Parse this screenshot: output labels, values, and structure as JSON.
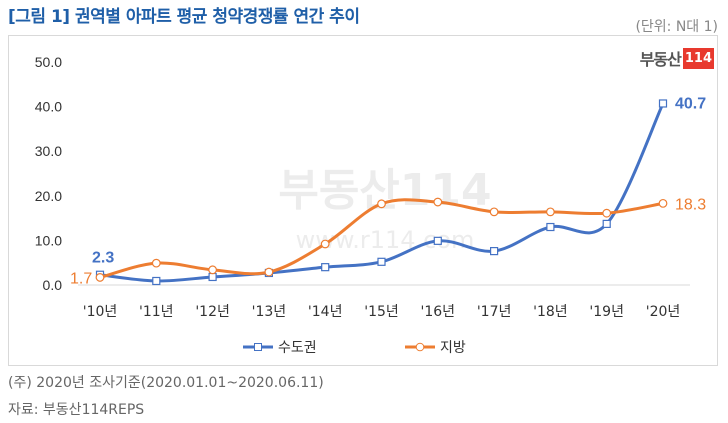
{
  "title": "[그림 1] 권역별 아파트 평균 청약경쟁률 연간 추이",
  "unit": "(단위: N대 1)",
  "logo": {
    "text": "부동산",
    "num": "114"
  },
  "watermark": {
    "text": "부동산114",
    "url": "www.r114.com"
  },
  "notes": [
    "(주) 2020년 조사기준(2020.01.01~2020.06.11)",
    "자료: 부동산114REPS"
  ],
  "chart_data": {
    "type": "line",
    "categories": [
      "'10년",
      "'11년",
      "'12년",
      "'13년",
      "'14년",
      "'15년",
      "'16년",
      "'17년",
      "'18년",
      "'19년",
      "'20년"
    ],
    "ylim": [
      0,
      50
    ],
    "yticks": [
      "0.0",
      "10.0",
      "20.0",
      "30.0",
      "40.0",
      "50.0"
    ],
    "grid": false,
    "legend": "bottom",
    "series": [
      {
        "name": "수도권",
        "color": "#4472c4",
        "marker": "square",
        "values": [
          2.3,
          0.9,
          1.8,
          2.7,
          4.0,
          5.2,
          9.9,
          7.6,
          13.0,
          13.7,
          40.7
        ],
        "labels": {
          "0": "2.3",
          "10": "40.7"
        }
      },
      {
        "name": "지방",
        "color": "#ed7d31",
        "marker": "circle",
        "values": [
          1.7,
          4.9,
          3.4,
          2.9,
          9.2,
          18.2,
          18.6,
          16.4,
          16.4,
          16.1,
          18.3
        ],
        "labels": {
          "0": "1.7",
          "10": "18.3"
        }
      }
    ]
  }
}
